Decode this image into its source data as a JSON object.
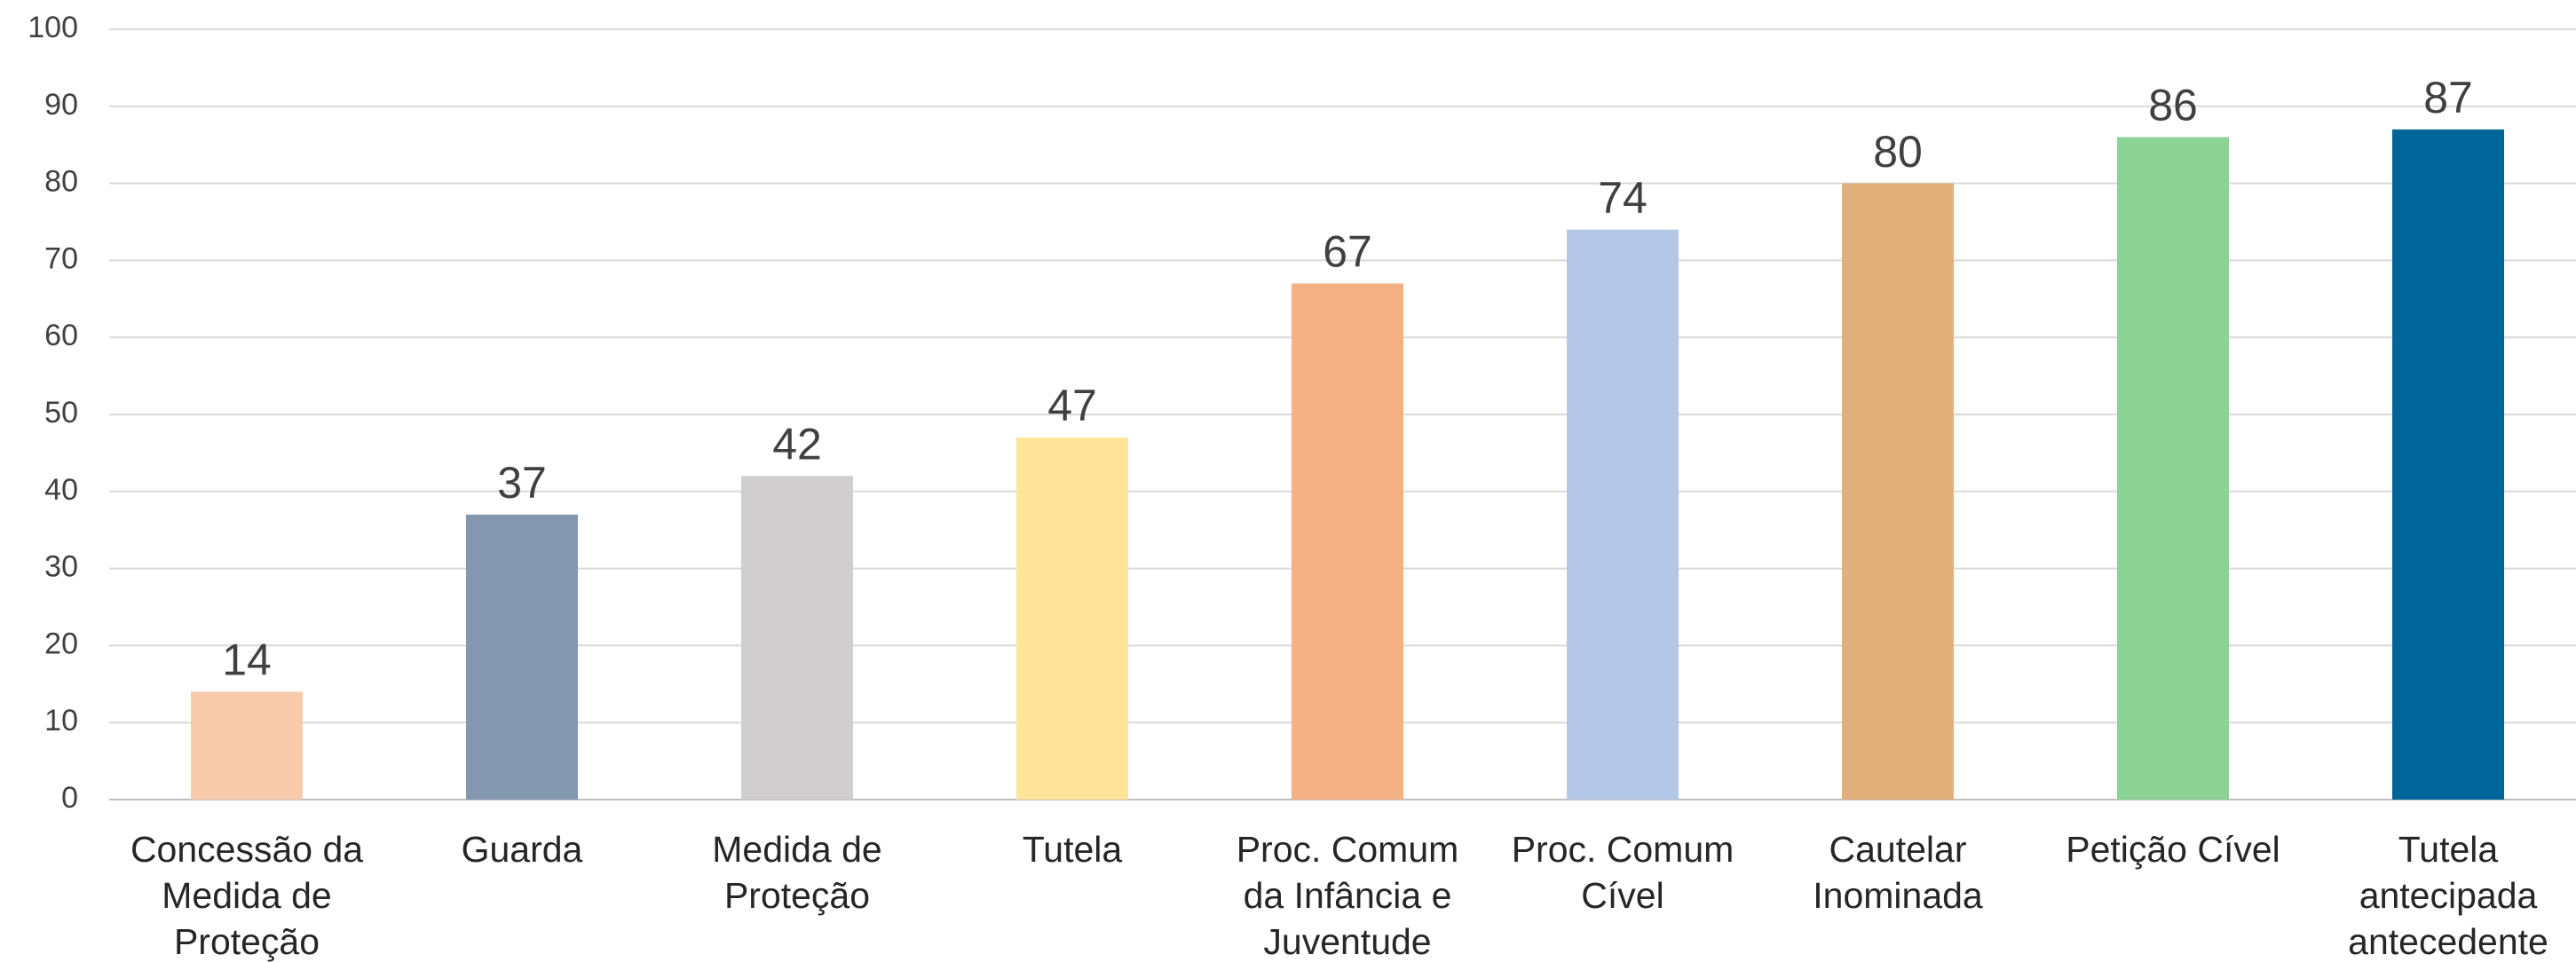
{
  "chart_data": {
    "type": "bar",
    "categories": [
      "Concessão da Medida de Proteção",
      "Guarda",
      "Medida de Proteção",
      "Tutela",
      "Proc. Comum da Infância e Juventude",
      "Proc. Comum Cível",
      "Cautelar Inominada",
      "Petição Cível",
      "Tutela antecipada antecedente"
    ],
    "values": [
      14,
      37,
      42,
      47,
      67,
      74,
      80,
      86,
      87
    ],
    "colors": [
      "#f8cbad",
      "#8497b0",
      "#d0cece",
      "#fee599",
      "#f4b183",
      "#b4c7e7",
      "#e2b07a",
      "#8bd294",
      "#006699"
    ],
    "ylim": [
      0,
      100
    ],
    "yticks": [
      0,
      10,
      20,
      30,
      40,
      50,
      60,
      70,
      80,
      90,
      100
    ],
    "grid": true
  }
}
